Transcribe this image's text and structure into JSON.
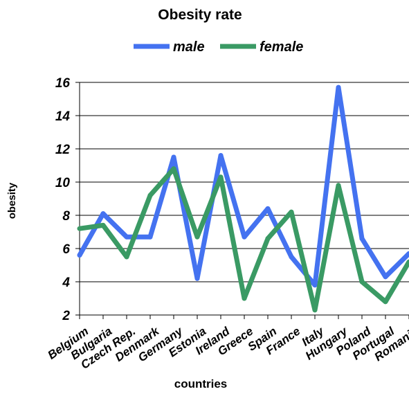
{
  "chart_data": {
    "type": "line",
    "title": "Obesity rate",
    "xlabel": "countries",
    "ylabel": "obesity",
    "categories": [
      "Belgium",
      "Bulgaria",
      "Czech Rep.",
      "Denmark",
      "Germany",
      "Estonia",
      "Ireland",
      "Greece",
      "Spain",
      "France",
      "Italy",
      "Hungary",
      "Poland",
      "Portugal",
      "Romania"
    ],
    "series": [
      {
        "name": "male",
        "color": "#4472f0",
        "values": [
          5.6,
          8.1,
          6.7,
          6.7,
          11.5,
          4.2,
          11.6,
          6.7,
          8.4,
          5.5,
          3.8,
          15.7,
          6.6,
          4.3,
          5.7
        ]
      },
      {
        "name": "female",
        "color": "#3a9a64",
        "values": [
          7.2,
          7.4,
          5.5,
          9.2,
          10.8,
          6.7,
          10.3,
          3.0,
          6.6,
          8.2,
          2.3,
          9.8,
          4.0,
          2.8,
          5.2
        ]
      }
    ],
    "ylim": [
      2,
      16
    ],
    "yticks": [
      2,
      4,
      6,
      8,
      10,
      12,
      14,
      16
    ],
    "grid": true,
    "legend": "top"
  }
}
